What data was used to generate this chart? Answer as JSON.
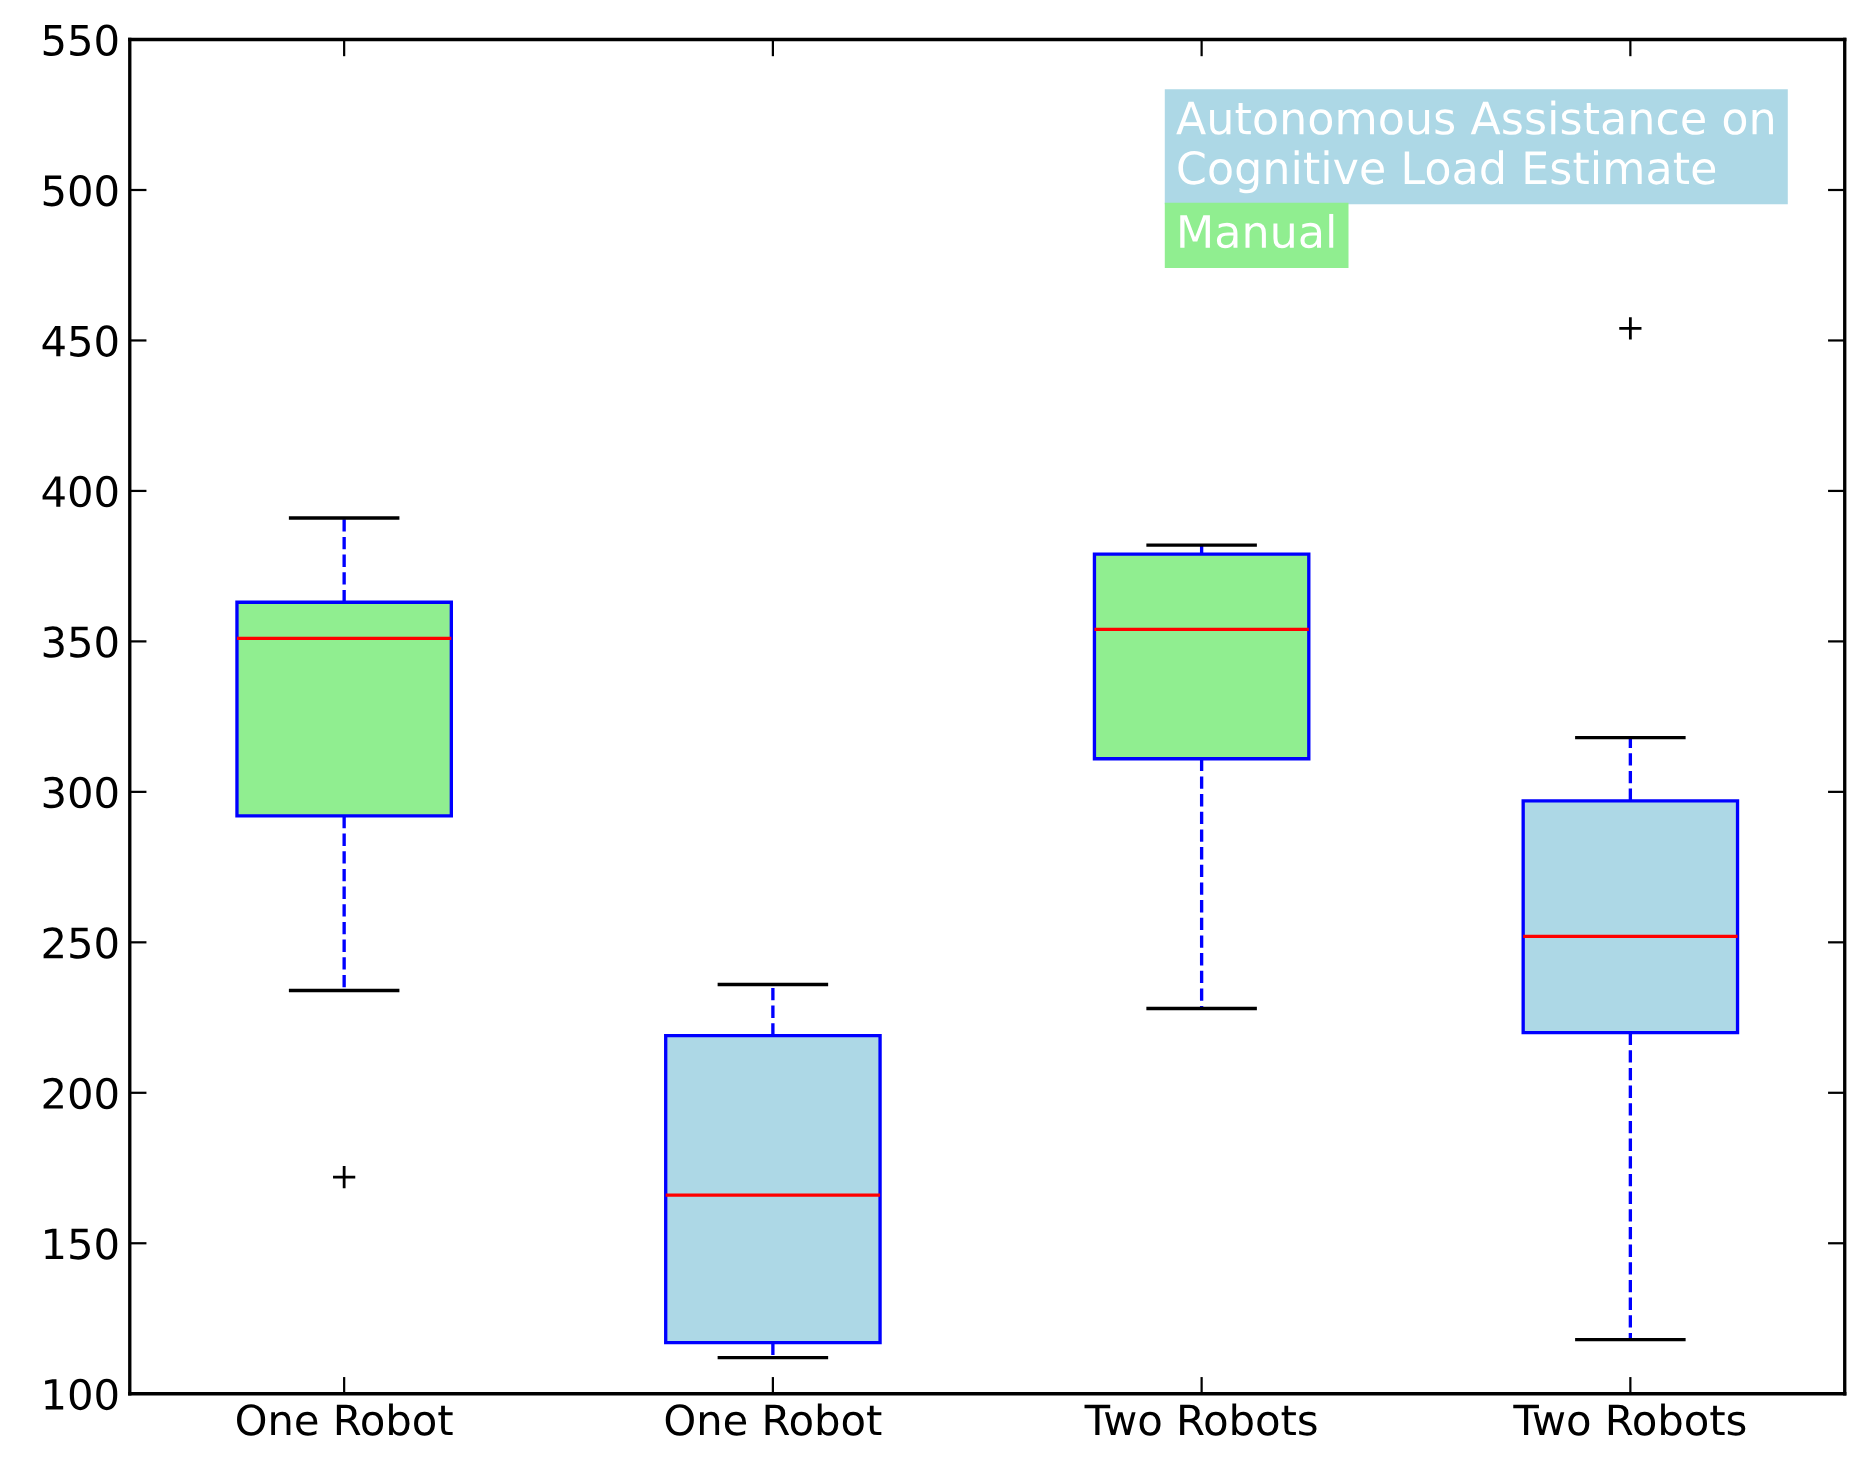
{
  "chart_data": {
    "type": "box",
    "categories": [
      "One Robot",
      "One Robot",
      "Two Robots",
      "Two Robots"
    ],
    "series": [
      {
        "name": "Autonomous Assistance on\nCognitive Load Estimate",
        "color": "#add8e6",
        "boxes": [
          null,
          {
            "low": 112,
            "q1": 117,
            "median": 166,
            "q3": 219,
            "high": 236
          },
          null,
          {
            "low": 118,
            "q1": 220,
            "median": 252,
            "q3": 297,
            "high": 318,
            "outliers": [
              454
            ]
          }
        ]
      },
      {
        "name": "Manual",
        "color": "#90ee90",
        "boxes": [
          {
            "low": 234,
            "q1": 292,
            "median": 351,
            "q3": 363,
            "high": 391,
            "outliers": [
              172
            ]
          },
          null,
          {
            "low": 228,
            "q1": 311,
            "median": 354,
            "q3": 379,
            "high": 382
          },
          null
        ]
      }
    ],
    "ylim": [
      100,
      550
    ],
    "yticks": [
      100,
      150,
      200,
      250,
      300,
      350,
      400,
      450,
      500,
      550
    ],
    "legend": "top right",
    "grid": false
  }
}
